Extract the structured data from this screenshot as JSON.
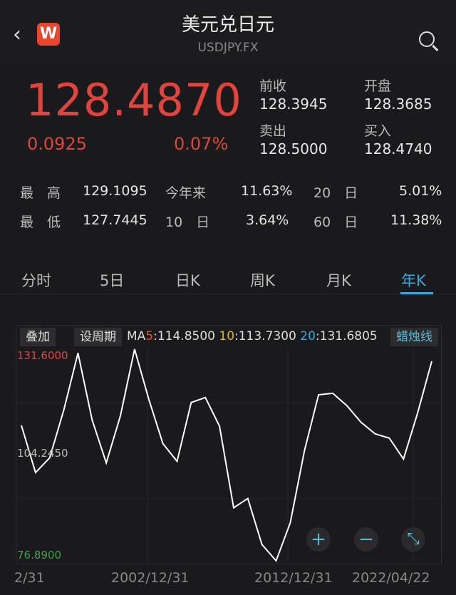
{
  "header": {
    "title": "美元兑日元",
    "symbol": "USDJPY.FX",
    "logo_letter": "W"
  },
  "quote": {
    "price": "128.4870",
    "change": "0.0925",
    "change_pct": "0.07%",
    "prev_close_label": "前收",
    "prev_close": "128.3945",
    "open_label": "开盘",
    "open": "128.3685",
    "ask_label": "卖出",
    "ask": "128.5000",
    "bid_label": "买入",
    "bid": "128.4740"
  },
  "stats": {
    "high_label": "最　高",
    "high": "129.1095",
    "low_label": "最　低",
    "low": "127.7445",
    "ytd_label": "今年来",
    "ytd": "11.63%",
    "d10_label": "10　日",
    "d10": "3.64%",
    "d20_label": "20　日",
    "d20": "5.01%",
    "d60_label": "60　日",
    "d60": "11.38%"
  },
  "tabs": [
    "分时",
    "5日",
    "日K",
    "周K",
    "月K",
    "年K"
  ],
  "active_tab": "年K",
  "chart_toolbar": {
    "overlay": "叠加",
    "set_period": "设周期",
    "ma_prefix": "MA",
    "ma5_label": "5",
    "ma5": ":114.8500",
    "ma10_label": "10",
    "ma10": ":113.7300",
    "ma20_label": "20",
    "ma20": ":131.6805",
    "candle": "蜡烛线"
  },
  "colors": {
    "up": "#e0443d",
    "down": "#3fa34d",
    "ma5": "#e0543d",
    "ma10": "#d8b52c",
    "ma20": "#3ba7e0",
    "accent": "#3ba7e0"
  },
  "chart_data": {
    "type": "line",
    "y_max_label": "131.6000",
    "y_mid_label": "104.2450",
    "y_min_label": "76.8900",
    "ylim": [
      76.89,
      131.6
    ],
    "x_tick_labels": [
      "2/31",
      "2002/12/31",
      "2012/12/31",
      "2022/04/22"
    ],
    "x": [
      1993,
      1994,
      1995,
      1996,
      1997,
      1998,
      1999,
      2000,
      2001,
      2002,
      2003,
      2004,
      2005,
      2006,
      2007,
      2008,
      2009,
      2010,
      2011,
      2012,
      2013,
      2014,
      2015,
      2016,
      2017,
      2018,
      2019,
      2020,
      2021,
      2022
    ],
    "values": [
      111.9,
      99.7,
      103.5,
      115.9,
      130.6,
      113.3,
      102.2,
      114.4,
      131.6,
      118.7,
      107.2,
      102.6,
      117.8,
      119.1,
      111.7,
      90.6,
      93.0,
      81.1,
      76.89,
      86.7,
      105.3,
      119.8,
      120.2,
      117.0,
      112.7,
      109.7,
      108.6,
      103.2,
      115.1,
      128.49
    ]
  },
  "controls": {
    "zoom_in": "+",
    "zoom_out": "−",
    "fullscreen": "⤡"
  }
}
